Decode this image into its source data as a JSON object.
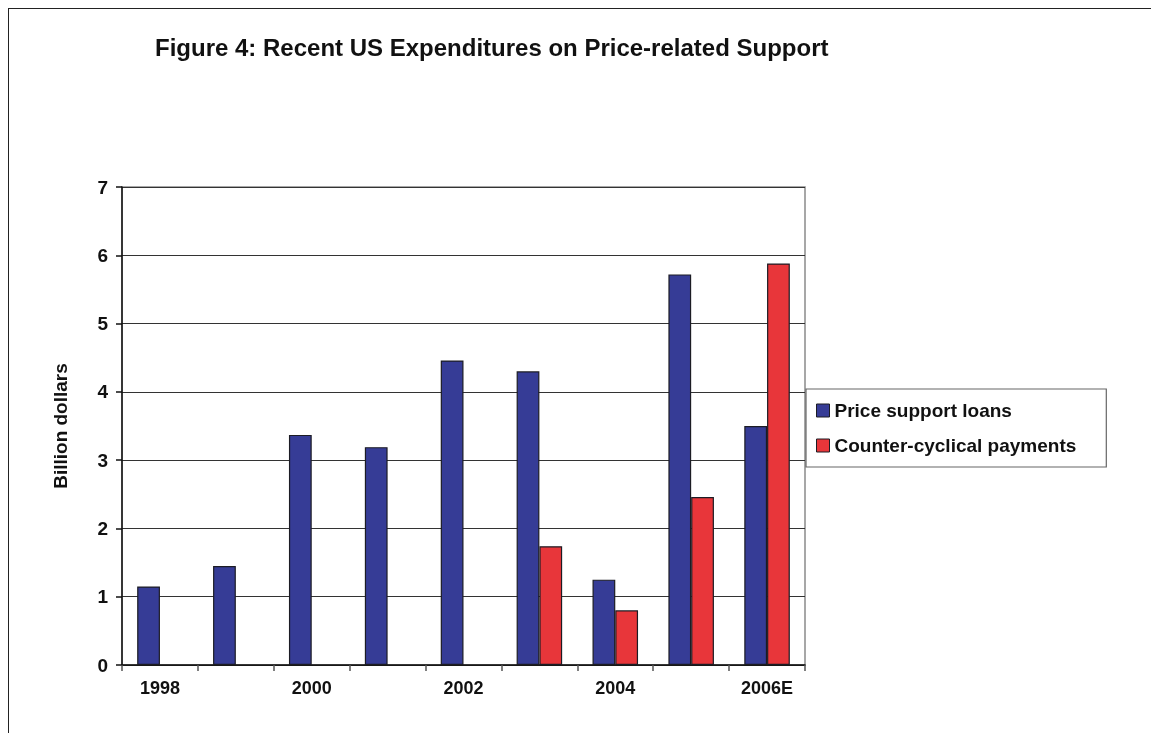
{
  "chart_data": {
    "type": "bar",
    "title": "Figure 4: Recent US Expenditures on Price-related Support",
    "ylabel": "Billion dollars",
    "categories": [
      "1998",
      null,
      "2000",
      null,
      "2002",
      null,
      "2004",
      null,
      "2006E"
    ],
    "series": [
      {
        "name": "Price support loans",
        "color": "#363c96",
        "values": [
          1.15,
          1.45,
          3.37,
          3.19,
          4.46,
          4.3,
          1.25,
          5.72,
          3.5
        ]
      },
      {
        "name": "Counter-cyclical payments",
        "color": "#e8363a",
        "values": [
          null,
          null,
          null,
          null,
          null,
          1.74,
          0.8,
          2.46,
          5.88
        ]
      }
    ],
    "ylim": [
      0,
      7
    ],
    "yticks": [
      0,
      1,
      2,
      3,
      4,
      5,
      6,
      7
    ],
    "grid": "y",
    "legend": "right"
  }
}
